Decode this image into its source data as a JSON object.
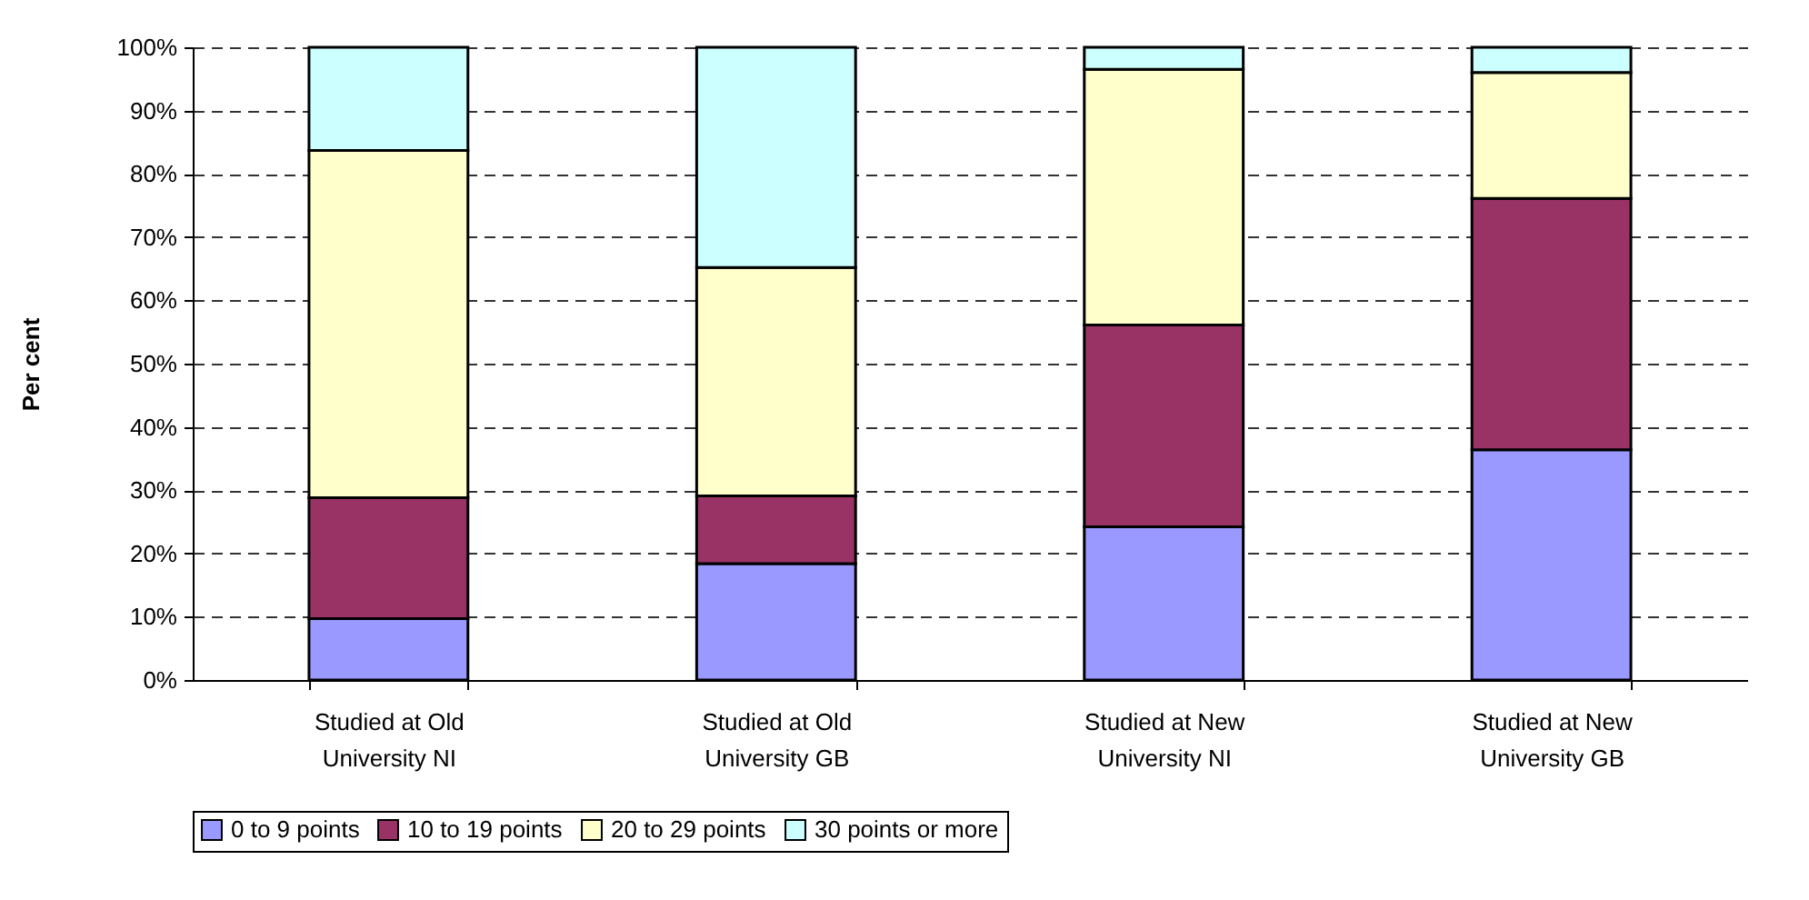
{
  "chart_data": {
    "type": "bar",
    "stacked": true,
    "ylabel": "Per cent",
    "categories": [
      "Studied at Old University NI",
      "Studied at Old University GB",
      "Studied at New University NI",
      "Studied at New University GB"
    ],
    "series": [
      {
        "name": "0 to 9 points",
        "color": "#9999ff",
        "values": [
          9.7,
          18.4,
          24.2,
          36.4
        ]
      },
      {
        "name": "10 to 19 points",
        "color": "#993366",
        "values": [
          19.1,
          10.7,
          31.9,
          39.7
        ]
      },
      {
        "name": "20 to 29 points",
        "color": "#ffffcc",
        "values": [
          54.9,
          36.1,
          40.4,
          19.9
        ]
      },
      {
        "name": "30 points or more",
        "color": "#ccffff",
        "values": [
          16.3,
          34.8,
          3.5,
          4.0
        ]
      }
    ],
    "ylim": [
      0,
      100
    ],
    "yticks": [
      {
        "value": 0,
        "label": "0%"
      },
      {
        "value": 10,
        "label": "10%"
      },
      {
        "value": 20,
        "label": "20%"
      },
      {
        "value": 30,
        "label": "30%"
      },
      {
        "value": 40,
        "label": "40%"
      },
      {
        "value": 50,
        "label": "50%"
      },
      {
        "value": 60,
        "label": "60%"
      },
      {
        "value": 70,
        "label": "70%"
      },
      {
        "value": 80,
        "label": "80%"
      },
      {
        "value": 90,
        "label": "90%"
      },
      {
        "value": 100,
        "label": "100%"
      }
    ],
    "grid": "y",
    "legend": "bottom"
  }
}
